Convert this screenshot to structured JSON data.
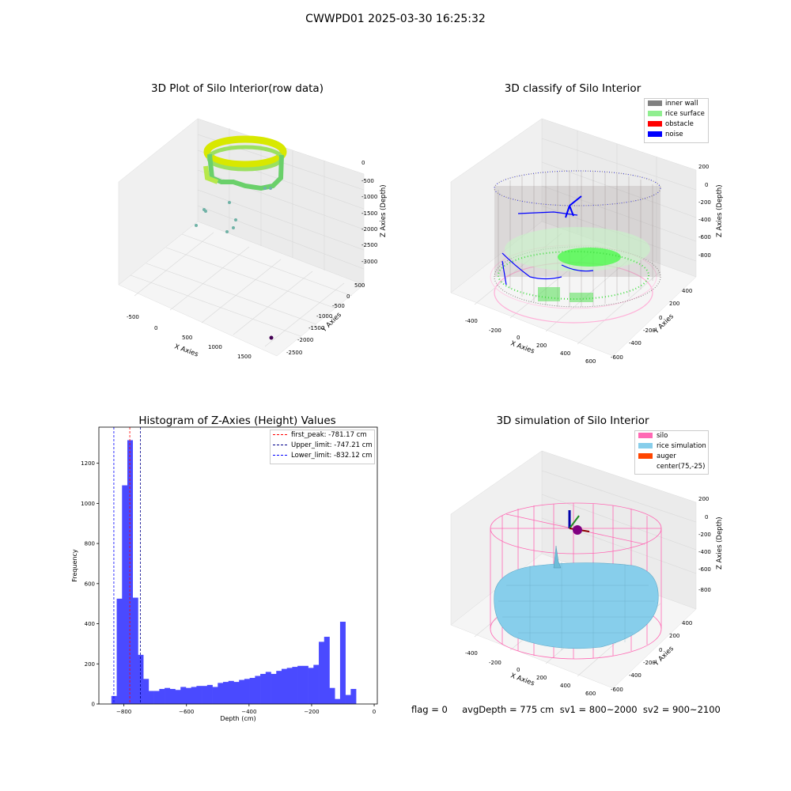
{
  "suptitle": "CWWPD01 2025-03-30 16:25:32",
  "panels": {
    "raw": {
      "title": "3D Plot of Silo Interior(row data)",
      "xlabel": "X Axies",
      "ylabel": "Y Axies",
      "zlabel": "Z Axies (Depth)",
      "xticks": [
        "-500",
        "0",
        "500",
        "1000",
        "1500"
      ],
      "yticks": [
        "500",
        "0",
        "-500",
        "-1000",
        "-1500",
        "-2000",
        "-2500"
      ],
      "zticks": [
        "0",
        "-500",
        "-1000",
        "-1500",
        "-2000",
        "-2500",
        "-3000"
      ]
    },
    "classify": {
      "title": "3D classify of Silo Interior",
      "xlabel": "X Axies",
      "ylabel": "Y Axies",
      "zlabel": "Z Axies (Depth)",
      "xticks": [
        "-400",
        "-200",
        "0",
        "200",
        "400",
        "600"
      ],
      "yticks": [
        "400",
        "200",
        "0",
        "-200",
        "-400",
        "-600"
      ],
      "zticks": [
        "200",
        "0",
        "-200",
        "-400",
        "-600",
        "-800"
      ],
      "legend": [
        {
          "label": "inner wall",
          "color": "#808080"
        },
        {
          "label": "rice surface",
          "color": "#90ee90"
        },
        {
          "label": "obstacle",
          "color": "#ff0000"
        },
        {
          "label": "noise",
          "color": "#0000ff"
        }
      ]
    },
    "sim": {
      "title": "3D simulation of Silo Interior",
      "xlabel": "X Axies",
      "ylabel": "Y Axies",
      "zlabel": "Z Axies (Depth)",
      "xticks": [
        "-400",
        "-200",
        "0",
        "200",
        "400",
        "600"
      ],
      "yticks": [
        "400",
        "200",
        "0",
        "-200",
        "-400",
        "-600"
      ],
      "zticks": [
        "200",
        "0",
        "-200",
        "-400",
        "-600",
        "-800"
      ],
      "legend": [
        {
          "label": "silo",
          "color": "#ff69b4"
        },
        {
          "label": "rice simulation",
          "color": "#87ceeb"
        },
        {
          "label": "auger",
          "color": "#ff4500"
        },
        {
          "label": "center(75,-25)",
          "color": "none"
        }
      ]
    }
  },
  "status_text": "flag = 0     avgDepth = 775 cm  sv1 = 800~2000  sv2 = 900~2100",
  "chart_data": {
    "type": "bar",
    "title": "Histogram of Z-Axies (Height) Values",
    "xlabel": "Depth (cm)",
    "ylabel": "Frequency",
    "xlim": [
      -880,
      10
    ],
    "ylim": [
      0,
      1380
    ],
    "xticks": [
      -800,
      -600,
      -400,
      -200,
      0
    ],
    "yticks": [
      0,
      200,
      400,
      600,
      800,
      1000,
      1200
    ],
    "bar_color": "#4a4aff",
    "bin_width": 17,
    "bin_start": -840,
    "values": [
      40,
      525,
      1090,
      1315,
      530,
      245,
      125,
      65,
      65,
      75,
      80,
      75,
      70,
      85,
      80,
      85,
      90,
      90,
      95,
      85,
      105,
      110,
      115,
      110,
      120,
      125,
      130,
      140,
      150,
      160,
      150,
      165,
      175,
      180,
      185,
      190,
      190,
      180,
      195,
      310,
      335,
      80,
      25,
      410,
      45,
      75
    ],
    "vlines": [
      {
        "label": "first_peak: -781.17 cm",
        "value": -781.17,
        "color": "#ff0000"
      },
      {
        "label": "Upper_limit: -747.21 cm",
        "value": -747.21,
        "color": "#00008b"
      },
      {
        "label": "Lower_limit: -832.12 cm",
        "value": -832.12,
        "color": "#0000ff"
      }
    ],
    "legend_position": "top-right"
  }
}
